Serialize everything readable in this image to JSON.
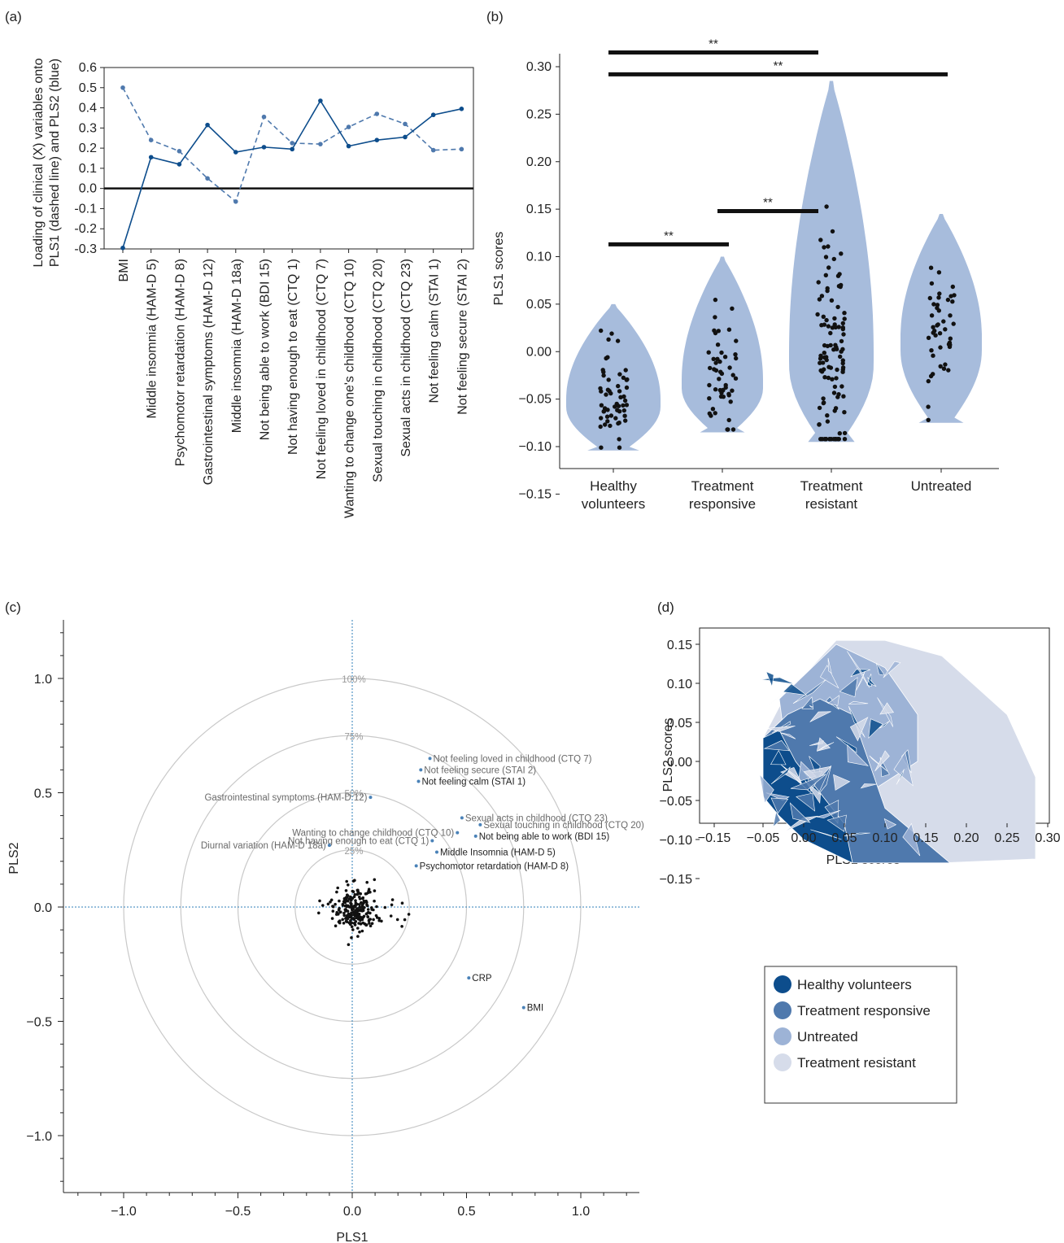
{
  "panels": {
    "a": {
      "letter": "(a)"
    },
    "b": {
      "letter": "(b)"
    },
    "c": {
      "letter": "(c)"
    },
    "d": {
      "letter": "(d)"
    }
  },
  "colors": {
    "dark_blue": "#0d4d8c",
    "mid_blue": "#4f79ad",
    "light_blue": "#9db3d6",
    "pale_blue": "#d6dcea",
    "violin": "#a7bcdc",
    "ink": "#111111",
    "label_blue": "#4a82b8"
  },
  "chart_data": [
    {
      "id": "a",
      "type": "line",
      "ylabel_line1": "Loading of clinical (X) variables onto",
      "ylabel_line2": "PLS1 (dashed line) and PLS2 (blue)",
      "xlabel": "",
      "ylim": [
        -0.3,
        0.6
      ],
      "yticks": [
        "0.6",
        "0.5",
        "0.4",
        "0.3",
        "0.2",
        "0.1",
        "0.0",
        "-0.1",
        "-0.2",
        "-0.3"
      ],
      "categories": [
        "BMI",
        "Middle insomnia (HAM-D 5)",
        "Psychomotor retardation (HAM-D 8)",
        "Gastrointestinal symptoms (HAM-D 12)",
        "Middle insomnia (HAM-D 18a)",
        "Not being able to work (BDI 15)",
        "Not having enough to eat (CTQ 1)",
        "Not feeling loved in childhood (CTQ 7)",
        "Wanting to change one's childhood (CTQ 10)",
        "Sexual touching in childhood (CTQ 20)",
        "Sexual acts in childhood (CTQ 23)",
        "Not feeling calm (STAI 1)",
        "Not feeling secure (STAI 2)"
      ],
      "series": [
        {
          "style": "dashed",
          "values": [
            0.5,
            0.24,
            0.185,
            0.05,
            -0.065,
            0.355,
            0.225,
            0.22,
            0.305,
            0.37,
            0.32,
            0.19,
            0.195
          ]
        },
        {
          "style": "solid",
          "values": [
            -0.295,
            0.155,
            0.12,
            0.315,
            0.18,
            0.205,
            0.195,
            0.435,
            0.21,
            0.24,
            0.255,
            0.365,
            0.395
          ]
        }
      ]
    },
    {
      "id": "b",
      "type": "violin",
      "ylabel": "PLS1 scores",
      "ylim": [
        -0.15,
        0.3
      ],
      "yticks": [
        "0.30",
        "0.25",
        "0.20",
        "0.15",
        "0.10",
        "0.05",
        "0.00",
        "−0.05",
        "−0.10",
        "−0.15"
      ],
      "categories": [
        [
          "Healthy",
          "volunteers"
        ],
        [
          "Treatment",
          "responsive"
        ],
        [
          "Treatment",
          "resistant"
        ],
        [
          "Untreated"
        ]
      ],
      "ranges": [
        [
          -0.104,
          0.05
        ],
        [
          -0.085,
          0.1
        ],
        [
          -0.095,
          0.285
        ],
        [
          -0.075,
          0.145
        ]
      ],
      "medians": [
        -0.05,
        -0.03,
        0.0,
        0.015
      ],
      "point_counts": [
        55,
        50,
        110,
        45
      ],
      "significance": [
        {
          "from": 0,
          "to": 1,
          "y": 0.113,
          "label": "**"
        },
        {
          "from": 1,
          "to": 2,
          "y": 0.148,
          "label": "**"
        },
        {
          "from": 0,
          "to": 2,
          "y": 0.315,
          "label": "**"
        },
        {
          "from": 0,
          "to": 3,
          "y": 0.292,
          "label": "**"
        }
      ]
    },
    {
      "id": "c",
      "type": "scatter",
      "xlabel": "PLS1",
      "ylabel": "PLS2",
      "xlim": [
        -1.25,
        1.25
      ],
      "ylim": [
        -1.25,
        1.25
      ],
      "xticks": [
        "−1.0",
        "−0.5",
        "0.0",
        "0.5",
        "1.0"
      ],
      "yticks": [
        "1.0",
        "0.5",
        "0.0",
        "−0.5",
        "−1.0"
      ],
      "circles": [
        {
          "r": 1.0,
          "label": "100%"
        },
        {
          "r": 0.75,
          "label": "75%"
        },
        {
          "r": 0.5,
          "label": "50%"
        },
        {
          "r": 0.25,
          "label": "25%"
        }
      ],
      "variables": [
        {
          "name": "Not feeling loved in childhood (CTQ 7)",
          "x": 0.34,
          "y": 0.65,
          "side": "right",
          "dark": false
        },
        {
          "name": "Not feeling secure (STAI 2)",
          "x": 0.3,
          "y": 0.6,
          "side": "right",
          "dark": false
        },
        {
          "name": "Not feeling calm (STAI 1)",
          "x": 0.29,
          "y": 0.55,
          "side": "right",
          "dark": true
        },
        {
          "name": "Gastrointestinal symptoms (HAM-D 12)",
          "x": 0.08,
          "y": 0.48,
          "side": "left",
          "dark": false
        },
        {
          "name": "Sexual acts in childhood (CTQ 23)",
          "x": 0.48,
          "y": 0.39,
          "side": "right",
          "dark": false
        },
        {
          "name": "Sexual touching in childhood (CTQ 20)",
          "x": 0.56,
          "y": 0.36,
          "side": "right",
          "dark": false
        },
        {
          "name": "Wanting to change childhood (CTQ 10)",
          "x": 0.46,
          "y": 0.325,
          "side": "left",
          "dark": false
        },
        {
          "name": "Not being able to work (BDI 15)",
          "x": 0.54,
          "y": 0.31,
          "side": "right",
          "dark": true
        },
        {
          "name": "Not having enough to eat (CTQ 1)",
          "x": 0.35,
          "y": 0.29,
          "side": "left",
          "dark": false
        },
        {
          "name": "Diurnal variation (HAM-D 18a)",
          "x": -0.1,
          "y": 0.27,
          "side": "left",
          "dark": false
        },
        {
          "name": "Middle Insomnia (HAM-D 5)",
          "x": 0.37,
          "y": 0.24,
          "side": "right",
          "dark": true
        },
        {
          "name": "Psychomotor retardation (HAM-D 8)",
          "x": 0.28,
          "y": 0.18,
          "side": "right",
          "dark": true
        },
        {
          "name": "CRP",
          "x": 0.51,
          "y": -0.31,
          "side": "right",
          "dark": true
        },
        {
          "name": "BMI",
          "x": 0.75,
          "y": -0.44,
          "side": "right",
          "dark": true
        }
      ],
      "sample_count": 240
    },
    {
      "id": "d",
      "type": "area",
      "xlabel": "PLS1 scores",
      "ylabel": "PLS2 scores",
      "xlim": [
        -0.15,
        0.3
      ],
      "ylim": [
        -0.16,
        0.16
      ],
      "xticks": [
        "−0.15",
        "−0.05",
        "0.00",
        "0.05",
        "0.10",
        "0.15",
        "0.20",
        "0.25",
        "0.30"
      ],
      "yticks": [
        "0.15",
        "0.10",
        "0.05",
        "0.00",
        "−0.05",
        "−0.10",
        "−0.15"
      ],
      "legend": [
        "Healthy volunteers",
        "Treatment responsive",
        "Untreated",
        "Treatment resistant"
      ],
      "hulls": [
        {
          "group": "Treatment resistant",
          "points": [
            [
              -0.05,
              0.03
            ],
            [
              -0.03,
              0.07
            ],
            [
              0.0,
              0.11
            ],
            [
              0.04,
              0.155
            ],
            [
              0.1,
              0.155
            ],
            [
              0.17,
              0.135
            ],
            [
              0.25,
              0.06
            ],
            [
              0.285,
              -0.02
            ],
            [
              0.285,
              -0.125
            ],
            [
              0.17,
              -0.13
            ],
            [
              0.0,
              -0.1
            ],
            [
              -0.05,
              -0.045
            ]
          ]
        },
        {
          "group": "Untreated",
          "points": [
            [
              -0.03,
              0.08
            ],
            [
              0.0,
              0.11
            ],
            [
              0.04,
              0.15
            ],
            [
              0.1,
              0.12
            ],
            [
              0.14,
              0.06
            ],
            [
              0.14,
              0.0
            ],
            [
              0.08,
              -0.04
            ],
            [
              0.02,
              -0.05
            ],
            [
              -0.02,
              0.0
            ]
          ]
        },
        {
          "group": "Treatment responsive",
          "points": [
            [
              -0.05,
              0.03
            ],
            [
              -0.02,
              0.06
            ],
            [
              0.02,
              0.08
            ],
            [
              0.06,
              0.06
            ],
            [
              0.08,
              0.0
            ],
            [
              0.1,
              -0.06
            ],
            [
              0.18,
              -0.13
            ],
            [
              0.06,
              -0.13
            ],
            [
              0.0,
              -0.1
            ],
            [
              -0.05,
              -0.045
            ]
          ]
        },
        {
          "group": "Healthy volunteers",
          "points": [
            [
              -0.05,
              0.03
            ],
            [
              -0.03,
              0.04
            ],
            [
              -0.01,
              0.0
            ],
            [
              0.02,
              -0.04
            ],
            [
              0.05,
              -0.08
            ],
            [
              0.06,
              -0.13
            ],
            [
              0.0,
              -0.1
            ],
            [
              -0.03,
              -0.07
            ],
            [
              -0.05,
              -0.045
            ]
          ]
        }
      ]
    }
  ]
}
